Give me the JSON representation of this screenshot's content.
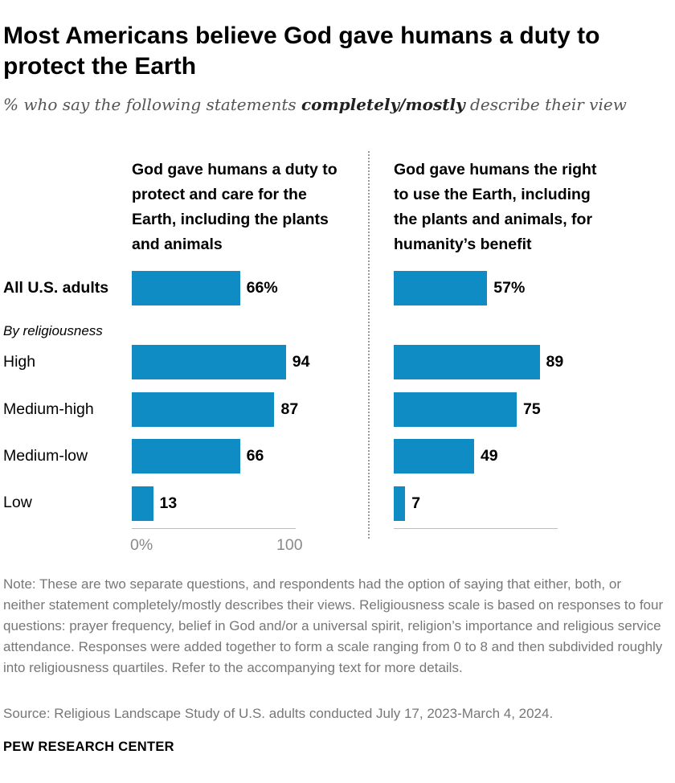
{
  "title": "Most Americans believe God gave humans a duty to protect the Earth",
  "subtitle": {
    "before": "% who say the following statements ",
    "emphasis": "completely/mostly",
    "after": " describe their view"
  },
  "section_label": "By religiousness",
  "chart_data": {
    "type": "bar",
    "orientation": "horizontal",
    "categories": [
      "All U.S. adults",
      "High",
      "Medium-high",
      "Medium-low",
      "Low"
    ],
    "xlim": [
      0,
      100
    ],
    "x_ticks": [
      "0%",
      "100"
    ],
    "bar_color": "#0f8cc3",
    "panels": [
      {
        "name": "God gave humans a duty to protect and care for the Earth, including the plants and animals",
        "values": [
          66,
          94,
          87,
          66,
          13
        ],
        "value_labels": [
          "66%",
          "94",
          "87",
          "66",
          "13"
        ]
      },
      {
        "name": "God gave humans the right to use the Earth, including the plants and animals, for humanity’s benefit",
        "values": [
          57,
          89,
          75,
          49,
          7
        ],
        "value_labels": [
          "57%",
          "89",
          "75",
          "49",
          "7"
        ]
      }
    ]
  },
  "note": "Note: These are two separate questions, and respondents had the option of saying that either, both, or neither statement completely/mostly describes their views. Religiousness scale is based on responses to four questions: prayer frequency, belief in God and/or a universal spirit, religion’s importance and religious service attendance. Responses were added together to form a scale ranging from 0 to 8 and then subdivided roughly into religiousness quartiles. Refer to the accompanying text for more details.",
  "source": "Source: Religious Landscape Study of U.S. adults conducted July 17, 2023-March 4, 2024.",
  "organization": "PEW RESEARCH CENTER"
}
